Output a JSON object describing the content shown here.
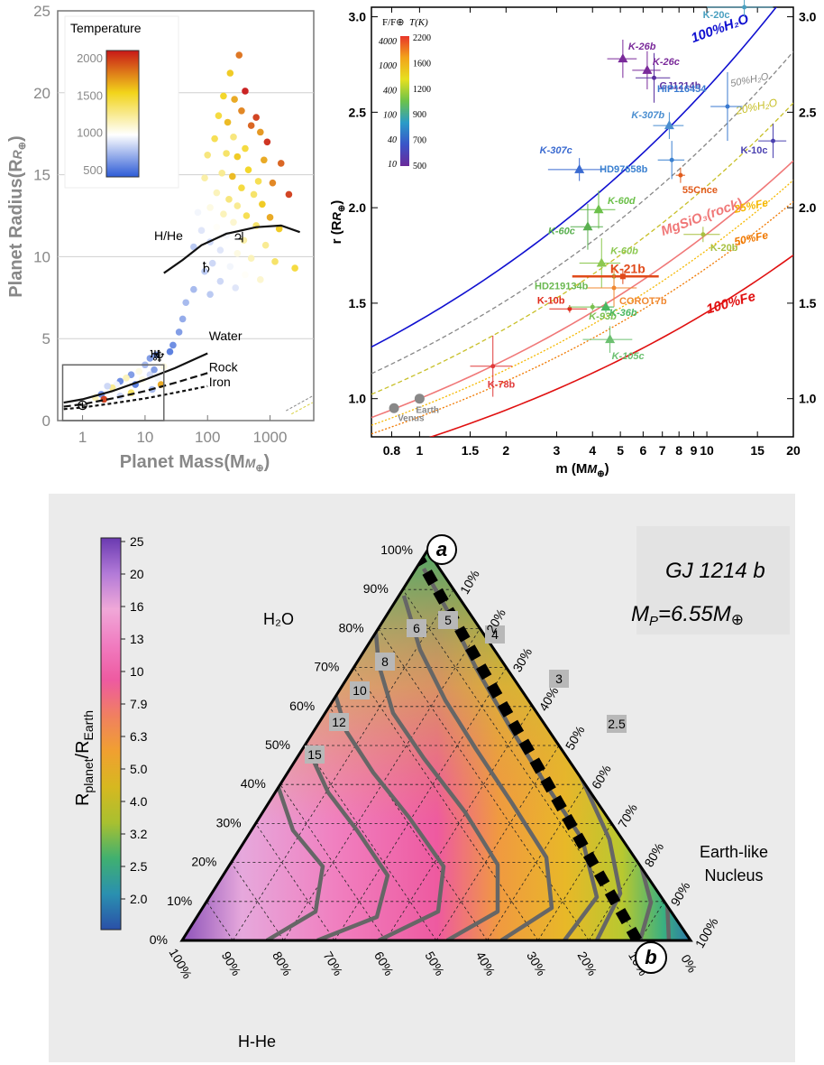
{
  "chart_data": [
    {
      "type": "scatter",
      "xlabel": "Planet Mass(M",
      "xlabel_sub": "⊕",
      "xlabel_end": ")",
      "ylabel": "Planet Radius(R",
      "ylabel_sub": "⊕",
      "ylabel_end": ")",
      "x_scale": "log",
      "xlim": [
        0.4,
        5000
      ],
      "ylim": [
        0,
        25
      ],
      "x_ticks": [
        1,
        10,
        100,
        1000
      ],
      "x_tick_labels": [
        "1",
        "10",
        "100",
        "1000"
      ],
      "y_ticks": [
        0,
        5,
        10,
        15,
        20,
        25
      ],
      "y_tick_labels": [
        "0",
        "5",
        "10",
        "15",
        "20",
        "25"
      ],
      "legend": {
        "title": "Temperature",
        "ticks": [
          500,
          1000,
          1500,
          2000
        ],
        "tick_labels": [
          "500",
          "1000",
          "1500",
          "2000"
        ],
        "colors": [
          "#2d5bd6",
          "#ffffff",
          "#f2d41a",
          "#c81818"
        ],
        "placement": "top-left"
      },
      "curves": [
        {
          "name": "H/He",
          "points": [
            [
              20,
              9.0
            ],
            [
              40,
              9.8
            ],
            [
              80,
              10.7
            ],
            [
              200,
              11.4
            ],
            [
              600,
              11.8
            ],
            [
              1500,
              11.9
            ],
            [
              3000,
              11.5
            ]
          ]
        },
        {
          "name": "Water",
          "points": [
            [
              0.5,
              1.1
            ],
            [
              1,
              1.3
            ],
            [
              3,
              1.8
            ],
            [
              10,
              2.5
            ],
            [
              30,
              3.2
            ],
            [
              100,
              4.1
            ]
          ]
        },
        {
          "name": "Rock",
          "points": [
            [
              0.5,
              0.85
            ],
            [
              1,
              1.0
            ],
            [
              3,
              1.35
            ],
            [
              10,
              1.8
            ],
            [
              30,
              2.3
            ],
            [
              100,
              2.9
            ]
          ]
        },
        {
          "name": "Iron",
          "points": [
            [
              0.5,
              0.7
            ],
            [
              1,
              0.8
            ],
            [
              3,
              1.05
            ],
            [
              10,
              1.35
            ],
            [
              30,
              1.7
            ],
            [
              100,
              2.1
            ]
          ]
        }
      ],
      "solar_system": [
        {
          "symbol": "⊕",
          "mass": 1,
          "radius": 1
        },
        {
          "symbol": "♆",
          "mass": 17,
          "radius": 3.9
        },
        {
          "symbol": "♅",
          "mass": 14.5,
          "radius": 4.0
        },
        {
          "symbol": "♄",
          "mass": 95,
          "radius": 9.4
        },
        {
          "symbol": "♃",
          "mass": 318,
          "radius": 11.2
        }
      ],
      "points": [
        [
          320,
          22.3,
          1850
        ],
        [
          230,
          21.2,
          1600
        ],
        [
          400,
          20.1,
          2100
        ],
        [
          270,
          19.6,
          1700
        ],
        [
          180,
          19.8,
          1550
        ],
        [
          350,
          18.9,
          1800
        ],
        [
          600,
          18.5,
          2000
        ],
        [
          210,
          18.2,
          1650
        ],
        [
          150,
          18.6,
          1500
        ],
        [
          500,
          18.0,
          1900
        ],
        [
          700,
          17.6,
          1750
        ],
        [
          260,
          17.3,
          1350
        ],
        [
          130,
          17.2,
          1450
        ],
        [
          900,
          17.0,
          2050
        ],
        [
          400,
          16.6,
          1500
        ],
        [
          200,
          16.3,
          1400
        ],
        [
          300,
          16.1,
          1600
        ],
        [
          100,
          16.2,
          1350
        ],
        [
          800,
          15.9,
          1700
        ],
        [
          1500,
          15.7,
          1900
        ],
        [
          450,
          15.3,
          1550
        ],
        [
          170,
          15.1,
          1300
        ],
        [
          250,
          14.9,
          1650
        ],
        [
          650,
          14.6,
          1450
        ],
        [
          1100,
          14.5,
          1800
        ],
        [
          90,
          14.8,
          1250
        ],
        [
          350,
          14.2,
          1500
        ],
        [
          140,
          13.9,
          1200
        ],
        [
          550,
          13.8,
          1400
        ],
        [
          2000,
          13.8,
          2000
        ],
        [
          220,
          13.5,
          1350
        ],
        [
          300,
          13.1,
          1300
        ],
        [
          750,
          13.2,
          1600
        ],
        [
          110,
          13.0,
          1100
        ],
        [
          180,
          12.6,
          1200
        ],
        [
          420,
          12.5,
          1450
        ],
        [
          1000,
          12.4,
          1700
        ],
        [
          70,
          12.7,
          1000
        ],
        [
          260,
          12.1,
          1150
        ],
        [
          140,
          11.8,
          1050
        ],
        [
          600,
          11.9,
          1400
        ],
        [
          1400,
          11.7,
          1600
        ],
        [
          80,
          11.6,
          950
        ],
        [
          200,
          11.3,
          1000
        ],
        [
          380,
          11.0,
          1250
        ],
        [
          110,
          10.9,
          900
        ],
        [
          850,
          10.7,
          1300
        ],
        [
          160,
          10.4,
          950
        ],
        [
          300,
          10.2,
          1100
        ],
        [
          60,
          10.6,
          850
        ],
        [
          500,
          9.9,
          1200
        ],
        [
          120,
          9.6,
          900
        ],
        [
          230,
          9.4,
          1000
        ],
        [
          1200,
          9.7,
          1400
        ],
        [
          90,
          9.1,
          850
        ],
        [
          400,
          8.9,
          1050
        ],
        [
          700,
          8.6,
          1150
        ],
        [
          160,
          8.5,
          900
        ],
        [
          2500,
          9.3,
          1500
        ],
        [
          280,
          8.1,
          950
        ],
        [
          60,
          8.0,
          800
        ],
        [
          110,
          7.7,
          850
        ],
        [
          45,
          7.2,
          800
        ],
        [
          40,
          6.2,
          750
        ],
        [
          35,
          5.4,
          700
        ],
        [
          28,
          4.6,
          650
        ],
        [
          25,
          4.2,
          600
        ],
        [
          15,
          4.0,
          650
        ],
        [
          12,
          3.8,
          700
        ],
        [
          10,
          3.4,
          800
        ],
        [
          8,
          3.0,
          1100
        ],
        [
          6,
          2.8,
          700
        ],
        [
          5,
          2.6,
          1200
        ],
        [
          4,
          2.4,
          650
        ],
        [
          3.5,
          2.2,
          1000
        ],
        [
          3,
          2.0,
          1300
        ],
        [
          2.5,
          2.1,
          900
        ],
        [
          7,
          2.2,
          600
        ],
        [
          9,
          2.5,
          1100
        ],
        [
          12,
          2.8,
          900
        ],
        [
          14,
          3.1,
          700
        ],
        [
          16,
          2.6,
          1000
        ],
        [
          20,
          3.3,
          1100
        ],
        [
          6,
          1.7,
          1400
        ],
        [
          4,
          1.5,
          900
        ],
        [
          2,
          1.6,
          650
        ],
        [
          1.6,
          1.4,
          1200
        ],
        [
          2.2,
          1.3,
          2000
        ],
        [
          18,
          2.2,
          1700
        ],
        [
          13,
          1.9,
          800
        ]
      ]
    },
    {
      "type": "scatter",
      "xlabel": "m (M",
      "xlabel_sub": "⊕",
      "xlabel_end": ")",
      "ylabel": "r (R",
      "ylabel_sub": "⊕",
      "ylabel_end": ")",
      "x_scale": "log",
      "xlim": [
        0.68,
        20
      ],
      "ylim": [
        0.8,
        3.05
      ],
      "x_ticks": [
        0.8,
        1,
        1.5,
        2,
        3,
        4,
        5,
        6,
        7,
        8,
        9,
        10,
        15,
        20
      ],
      "x_tick_labels": [
        "0.8",
        "1",
        "1.5",
        "2",
        "3",
        "4",
        "5",
        "6",
        "7",
        "8",
        "9",
        "10",
        "15",
        "20"
      ],
      "y_ticks": [
        1.0,
        1.5,
        2.0,
        2.5,
        3.0
      ],
      "y_tick_labels": [
        "1.0",
        "1.5",
        "2.0",
        "2.5",
        "3.0"
      ],
      "colorbar": {
        "label_left": "F/F⊕",
        "label_right": "T(K)",
        "left_ticks": [
          "4000",
          "1000",
          "400",
          "100",
          "40",
          "10"
        ],
        "right_ticks": [
          "2200",
          "1600",
          "1200",
          "900",
          "700",
          "500"
        ],
        "colors": [
          "#e8362a",
          "#f2a41a",
          "#e6e020",
          "#6cc24a",
          "#2a9bc8",
          "#3a55c8",
          "#6a2a9a"
        ]
      },
      "curves": [
        {
          "name": "100%H₂O",
          "color": "#1010d0",
          "style": "solid",
          "r1": 1.41,
          "k": 0.27
        },
        {
          "name": "50%H₂O",
          "color": "#888888",
          "style": "dashed",
          "r1": 1.255,
          "k": 0.27
        },
        {
          "name": "20%H₂O",
          "color": "#c8c02a",
          "style": "dashed",
          "r1": 1.135,
          "k": 0.27
        },
        {
          "name": "MgSiO₃(rock)",
          "color": "#f07878",
          "style": "solid",
          "r1": 1.0,
          "k": 0.27
        },
        {
          "name": "25%Fe",
          "color": "#f5b800",
          "style": "dotted",
          "r1": 0.955,
          "k": 0.27
        },
        {
          "name": "50%Fe",
          "color": "#f07800",
          "style": "dotted",
          "r1": 0.905,
          "k": 0.27
        },
        {
          "name": "100%Fe",
          "color": "#e01010",
          "style": "solid",
          "r1": 0.78,
          "k": 0.27
        }
      ],
      "planets": [
        {
          "name": "K-20c",
          "m": 13.5,
          "r": 3.05,
          "dm": 3.5,
          "dr": 0.05,
          "color": "#4aa0c0",
          "shape": "circle"
        },
        {
          "name": "K-26b",
          "m": 5.1,
          "r": 2.78,
          "dm": 0.6,
          "dr": 0.1,
          "color": "#7a2a9a",
          "shape": "triangle"
        },
        {
          "name": "K-26c",
          "m": 6.2,
          "r": 2.72,
          "dm": 0.7,
          "dr": 0.1,
          "color": "#7a2a9a",
          "shape": "triangle"
        },
        {
          "name": "GJ1214b",
          "m": 6.55,
          "r": 2.68,
          "dm": 0.9,
          "dr": 0.13,
          "color": "#5a30a0",
          "shape": "circle"
        },
        {
          "name": "K-307b",
          "m": 7.4,
          "r": 2.43,
          "dm": 0.9,
          "dr": 0.07,
          "color": "#4a8ed0",
          "shape": "triangle"
        },
        {
          "name": "HIP116454",
          "m": 11.8,
          "r": 2.53,
          "dm": 1.5,
          "dr": 0.18,
          "color": "#3a7ad0",
          "shape": "circle"
        },
        {
          "name": "K-10c",
          "m": 17,
          "r": 2.35,
          "dm": 1.9,
          "dr": 0.09,
          "color": "#4a40b0",
          "shape": "circle"
        },
        {
          "name": "K-307c",
          "m": 3.6,
          "r": 2.2,
          "dm": 0.8,
          "dr": 0.06,
          "color": "#3a6ad0",
          "shape": "triangle"
        },
        {
          "name": "HD97658b",
          "m": 7.55,
          "r": 2.25,
          "dm": 0.8,
          "dr": 0.1,
          "color": "#3a80d0",
          "shape": "circle"
        },
        {
          "name": "55Cnce",
          "m": 8.1,
          "r": 2.17,
          "dm": 0.3,
          "dr": 0.04,
          "color": "#e05a1a",
          "shape": "circle"
        },
        {
          "name": "K-60d",
          "m": 4.2,
          "r": 1.99,
          "dm": 0.6,
          "dr": 0.1,
          "color": "#6cc04a",
          "shape": "triangle"
        },
        {
          "name": "K-60c",
          "m": 3.85,
          "r": 1.9,
          "dm": 0.5,
          "dr": 0.12,
          "color": "#5ab050",
          "shape": "triangle"
        },
        {
          "name": "K-20b",
          "m": 9.7,
          "r": 1.86,
          "dm": 1.4,
          "dr": 0.04,
          "color": "#a8c040",
          "shape": "circle"
        },
        {
          "name": "K-60b",
          "m": 4.3,
          "r": 1.71,
          "dm": 0.7,
          "dr": 0.13,
          "color": "#8cc850",
          "shape": "triangle"
        },
        {
          "name": "HD219134b",
          "m": 4.75,
          "r": 1.64,
          "dm": 0.15,
          "dr": 0.05,
          "color": "#6ab850",
          "shape": "circle"
        },
        {
          "name": "K-21b",
          "m": 5.1,
          "r": 1.64,
          "dm": 1.7,
          "dr": 0.04,
          "color": "#e04a1a",
          "shape": "square"
        },
        {
          "name": "COROT7b",
          "m": 4.75,
          "r": 1.58,
          "dm": 0.95,
          "dr": 0.1,
          "color": "#f08830",
          "shape": "circle"
        },
        {
          "name": "K-10b",
          "m": 3.33,
          "r": 1.47,
          "dm": 0.5,
          "dr": 0.02,
          "color": "#e02a1a",
          "shape": "circle"
        },
        {
          "name": "K-93b",
          "m": 4.0,
          "r": 1.48,
          "dm": 0.7,
          "dr": 0.02,
          "color": "#7ac050",
          "shape": "circle"
        },
        {
          "name": "K-36b",
          "m": 4.45,
          "r": 1.48,
          "dm": 0.3,
          "dr": 0.03,
          "color": "#4ab860",
          "shape": "triangle"
        },
        {
          "name": "K-105c",
          "m": 4.6,
          "r": 1.31,
          "dm": 0.9,
          "dr": 0.07,
          "color": "#6cc070",
          "shape": "triangle"
        },
        {
          "name": "K-78b",
          "m": 1.8,
          "r": 1.17,
          "dm": 0.3,
          "dr": 0.16,
          "color": "#e03a3a",
          "shape": "circle"
        },
        {
          "name": "Venus",
          "m": 0.815,
          "r": 0.95,
          "dm": 0,
          "dr": 0,
          "color": "#888888",
          "shape": "circle"
        },
        {
          "name": "Earth",
          "m": 1,
          "r": 1,
          "dm": 0,
          "dr": 0,
          "color": "#888888",
          "shape": "circle"
        }
      ]
    },
    {
      "type": "heatmap",
      "title_line1": "GJ 1214 b",
      "title_line2_a": "M",
      "title_line2_sub": "P",
      "title_line2_b": "=6.55M",
      "title_line2_c": "⊕",
      "colorbar_label_main": "R",
      "colorbar_label_sub1": "planet",
      "colorbar_label_sep": "/R",
      "colorbar_label_sub2": "Earth",
      "colorbar_ticks": [
        "25",
        "20",
        "16",
        "13",
        "10",
        "7.9",
        "6.3",
        "5.0",
        "4.0",
        "3.2",
        "2.5",
        "2.0"
      ],
      "colorbar_colors": [
        "#6a3ab0",
        "#b27ad8",
        "#f0a8d8",
        "#f07cc0",
        "#ee5aa0",
        "#f08060",
        "#f0a030",
        "#d6b820",
        "#a8c030",
        "#40b070",
        "#2a90b0",
        "#2a50a8"
      ],
      "axis_left_label": "H₂O",
      "axis_bottom_label": "H-He",
      "axis_right_label_1": "Earth-like",
      "axis_right_label_2": "Nucleus",
      "corner_a": "a",
      "corner_b": "b",
      "left_ticks": [
        "0%",
        "10%",
        "20%",
        "30%",
        "40%",
        "50%",
        "60%",
        "70%",
        "80%",
        "90%",
        "100%"
      ],
      "right_ticks": [
        "0%",
        "10%",
        "20%",
        "30%",
        "40%",
        "50%",
        "60%",
        "70%",
        "80%",
        "90%",
        "100%"
      ],
      "bottom_ticks": [
        "100%",
        "90%",
        "80%",
        "70%",
        "60%",
        "50%",
        "40%",
        "30%",
        "20%",
        "10%",
        "0%"
      ],
      "contour_labels": [
        "15",
        "12",
        "10",
        "8",
        "6",
        "5",
        "4",
        "3",
        "2.5"
      ]
    }
  ]
}
